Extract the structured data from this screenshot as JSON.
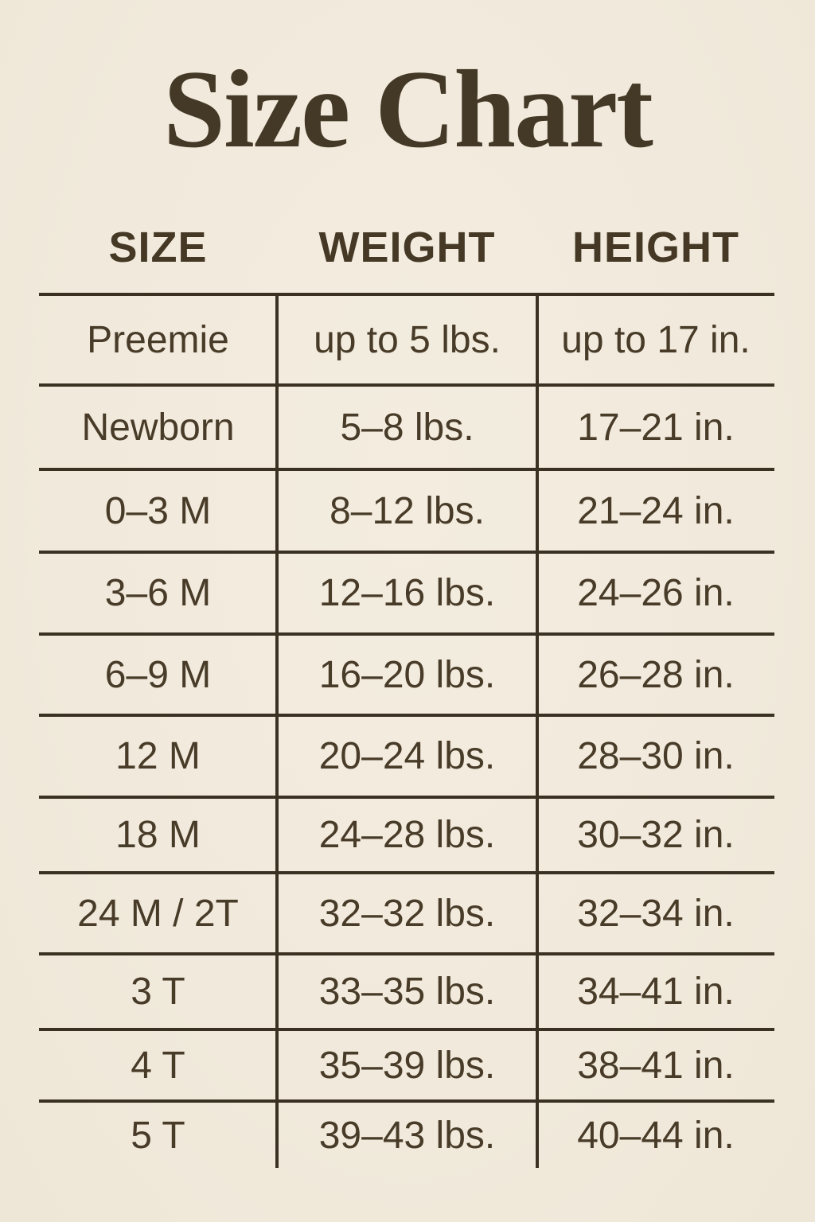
{
  "colors": {
    "background": "#f1eadc",
    "title_text": "#443826",
    "body_text": "#483b28",
    "line": "#3a3122"
  },
  "chart_data": {
    "type": "table",
    "title": "Size Chart",
    "columns": [
      "SIZE",
      "WEIGHT",
      "HEIGHT"
    ],
    "rows": [
      [
        "Preemie",
        "up to 5 lbs.",
        "up to 17 in."
      ],
      [
        "Newborn",
        "5–8 lbs.",
        "17–21 in."
      ],
      [
        "0–3 M",
        "8–12 lbs.",
        "21–24 in."
      ],
      [
        "3–6 M",
        "12–16 lbs.",
        "24–26 in."
      ],
      [
        "6–9 M",
        "16–20 lbs.",
        "26–28 in."
      ],
      [
        "12 M",
        "20–24 lbs.",
        "28–30 in."
      ],
      [
        "18 M",
        "24–28 lbs.",
        "30–32 in."
      ],
      [
        "24 M / 2T",
        "32–32 lbs.",
        "32–34 in."
      ],
      [
        "3 T",
        "33–35 lbs.",
        "34–41 in."
      ],
      [
        "4 T",
        "35–39 lbs.",
        "38–41 in."
      ],
      [
        "5 T",
        "39–43 lbs.",
        "40–44 in."
      ]
    ]
  }
}
